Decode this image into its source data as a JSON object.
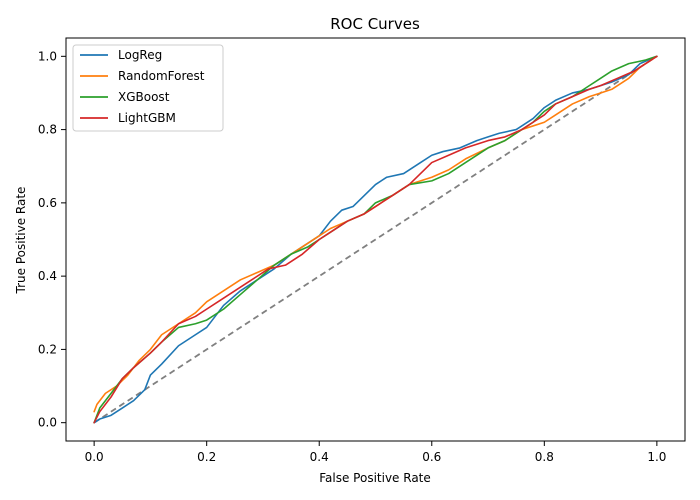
{
  "chart_data": {
    "type": "line",
    "title": "ROC Curves",
    "xlabel": "False Positive Rate",
    "ylabel": "True Positive Rate",
    "xlim": [
      -0.05,
      1.05
    ],
    "ylim": [
      -0.05,
      1.05
    ],
    "xticks": [
      "0.0",
      "0.2",
      "0.4",
      "0.6",
      "0.8",
      "1.0"
    ],
    "yticks": [
      "0.0",
      "0.2",
      "0.4",
      "0.6",
      "0.8",
      "1.0"
    ],
    "grid": false,
    "legend_position": "top-left",
    "baseline": {
      "x": [
        0,
        1
      ],
      "y": [
        0,
        1
      ],
      "color": "#808080",
      "style": "dashed"
    },
    "series": [
      {
        "name": "LogReg",
        "color": "#1f77b4",
        "x": [
          0.0,
          0.01,
          0.03,
          0.05,
          0.07,
          0.09,
          0.1,
          0.12,
          0.15,
          0.18,
          0.2,
          0.23,
          0.26,
          0.29,
          0.32,
          0.35,
          0.38,
          0.4,
          0.42,
          0.44,
          0.46,
          0.48,
          0.5,
          0.52,
          0.55,
          0.58,
          0.6,
          0.62,
          0.65,
          0.68,
          0.7,
          0.72,
          0.75,
          0.78,
          0.8,
          0.82,
          0.85,
          0.88,
          0.9,
          0.92,
          0.95,
          0.97,
          1.0
        ],
        "y": [
          0.0,
          0.01,
          0.02,
          0.04,
          0.06,
          0.09,
          0.13,
          0.16,
          0.21,
          0.24,
          0.26,
          0.32,
          0.36,
          0.39,
          0.42,
          0.46,
          0.49,
          0.51,
          0.55,
          0.58,
          0.59,
          0.62,
          0.65,
          0.67,
          0.68,
          0.71,
          0.73,
          0.74,
          0.75,
          0.77,
          0.78,
          0.79,
          0.8,
          0.83,
          0.86,
          0.88,
          0.9,
          0.91,
          0.92,
          0.93,
          0.95,
          0.98,
          1.0
        ]
      },
      {
        "name": "RandomForest",
        "color": "#ff7f0e",
        "x": [
          0.0,
          0.005,
          0.02,
          0.04,
          0.06,
          0.08,
          0.1,
          0.12,
          0.15,
          0.18,
          0.2,
          0.23,
          0.26,
          0.29,
          0.32,
          0.35,
          0.38,
          0.4,
          0.42,
          0.45,
          0.48,
          0.5,
          0.53,
          0.56,
          0.6,
          0.63,
          0.66,
          0.7,
          0.73,
          0.76,
          0.78,
          0.8,
          0.82,
          0.85,
          0.88,
          0.9,
          0.92,
          0.95,
          0.97,
          1.0
        ],
        "y": [
          0.03,
          0.05,
          0.08,
          0.1,
          0.13,
          0.17,
          0.2,
          0.24,
          0.27,
          0.3,
          0.33,
          0.36,
          0.39,
          0.41,
          0.43,
          0.46,
          0.49,
          0.51,
          0.53,
          0.55,
          0.57,
          0.59,
          0.62,
          0.65,
          0.67,
          0.69,
          0.72,
          0.75,
          0.77,
          0.8,
          0.81,
          0.82,
          0.84,
          0.87,
          0.89,
          0.9,
          0.91,
          0.94,
          0.97,
          1.0
        ]
      },
      {
        "name": "XGBoost",
        "color": "#2ca02c",
        "x": [
          0.0,
          0.01,
          0.03,
          0.05,
          0.07,
          0.1,
          0.12,
          0.15,
          0.18,
          0.2,
          0.23,
          0.26,
          0.29,
          0.32,
          0.35,
          0.38,
          0.4,
          0.42,
          0.45,
          0.48,
          0.5,
          0.53,
          0.56,
          0.6,
          0.63,
          0.66,
          0.7,
          0.73,
          0.76,
          0.78,
          0.8,
          0.82,
          0.85,
          0.88,
          0.9,
          0.92,
          0.95,
          0.98,
          1.0
        ],
        "y": [
          0.0,
          0.04,
          0.08,
          0.12,
          0.15,
          0.19,
          0.22,
          0.26,
          0.27,
          0.28,
          0.31,
          0.35,
          0.39,
          0.43,
          0.46,
          0.48,
          0.5,
          0.52,
          0.55,
          0.57,
          0.6,
          0.62,
          0.65,
          0.66,
          0.68,
          0.71,
          0.75,
          0.77,
          0.8,
          0.82,
          0.85,
          0.87,
          0.89,
          0.92,
          0.94,
          0.96,
          0.98,
          0.99,
          1.0
        ]
      },
      {
        "name": "LightGBM",
        "color": "#d62728",
        "x": [
          0.0,
          0.01,
          0.03,
          0.05,
          0.07,
          0.1,
          0.12,
          0.15,
          0.18,
          0.2,
          0.22,
          0.25,
          0.28,
          0.31,
          0.34,
          0.37,
          0.4,
          0.42,
          0.45,
          0.48,
          0.5,
          0.53,
          0.56,
          0.58,
          0.6,
          0.63,
          0.66,
          0.7,
          0.73,
          0.76,
          0.78,
          0.8,
          0.82,
          0.85,
          0.88,
          0.9,
          0.93,
          0.96,
          1.0
        ],
        "y": [
          0.0,
          0.03,
          0.07,
          0.12,
          0.15,
          0.19,
          0.22,
          0.27,
          0.29,
          0.31,
          0.33,
          0.36,
          0.39,
          0.42,
          0.43,
          0.46,
          0.5,
          0.52,
          0.55,
          0.57,
          0.59,
          0.62,
          0.65,
          0.68,
          0.71,
          0.73,
          0.75,
          0.77,
          0.78,
          0.8,
          0.82,
          0.84,
          0.87,
          0.89,
          0.91,
          0.92,
          0.94,
          0.96,
          1.0
        ]
      }
    ]
  }
}
